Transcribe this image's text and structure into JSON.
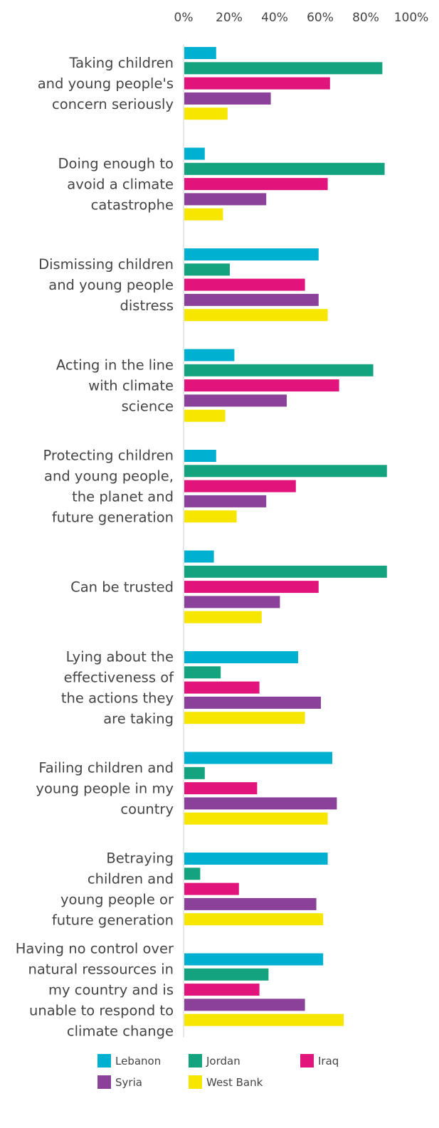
{
  "chart_data": {
    "type": "bar",
    "orientation": "horizontal",
    "xlim": [
      0,
      100
    ],
    "x_ticks": [
      "0%",
      "20%",
      "40%",
      "60%",
      "80%",
      "100%"
    ],
    "x_tick_values": [
      0,
      20,
      40,
      60,
      80,
      100
    ],
    "grid": false,
    "legend_position": "bottom",
    "categories": [
      [
        "Taking children",
        "and young people's",
        "concern seriously"
      ],
      [
        "Doing enough to",
        "avoid a climate",
        "catastrophe"
      ],
      [
        "Dismissing children",
        "and young people",
        "distress"
      ],
      [
        "Acting in the line",
        "with climate",
        "science"
      ],
      [
        "Protecting children",
        "and young people,",
        "the planet and",
        "future generation"
      ],
      [
        "Can be trusted"
      ],
      [
        "Lying about the",
        "effectiveness of",
        "the actions they",
        "are taking"
      ],
      [
        "Failing children and",
        "young people in my",
        "country"
      ],
      [
        "Betraying",
        "children and",
        "young people or",
        "future generation"
      ],
      [
        "Having no control over",
        "natural ressources in",
        "my country and is",
        "unable to respond to",
        "climate change"
      ]
    ],
    "series": [
      {
        "name": "Lebanon",
        "color": "#00b0d0",
        "values": [
          14,
          9,
          59,
          22,
          14,
          13,
          50,
          65,
          63,
          61
        ]
      },
      {
        "name": "Jordan",
        "color": "#14a37f",
        "values": [
          87,
          88,
          20,
          83,
          89,
          89,
          16,
          9,
          7,
          37
        ]
      },
      {
        "name": "Iraq",
        "color": "#e0147a",
        "values": [
          64,
          63,
          53,
          68,
          49,
          59,
          33,
          32,
          24,
          33
        ]
      },
      {
        "name": "Syria",
        "color": "#8b4199",
        "values": [
          38,
          36,
          59,
          45,
          36,
          42,
          60,
          67,
          58,
          53
        ]
      },
      {
        "name": "West Bank",
        "color": "#f7e600",
        "values": [
          19,
          17,
          63,
          18,
          23,
          34,
          53,
          63,
          61,
          70
        ]
      }
    ]
  }
}
